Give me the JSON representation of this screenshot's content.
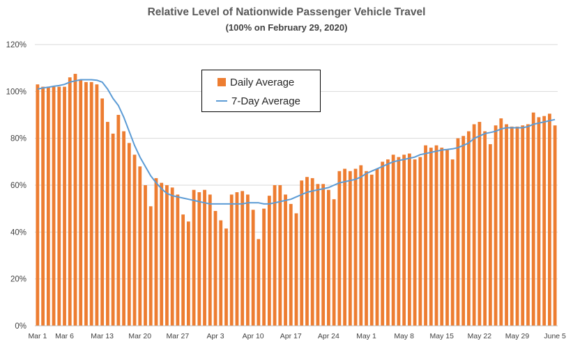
{
  "colors": {
    "bar": "#ED7D31",
    "line": "#5B9BD5",
    "grid": "#D9D9D9",
    "axis": "#BFBFBF"
  },
  "chart_data": {
    "type": "bar",
    "title": "Relative Level of Nationwide Passenger Vehicle Travel",
    "subtitle": "(100% on February 29, 2020)",
    "xlabel": "",
    "ylabel": "",
    "ylim": [
      0,
      120
    ],
    "yticks": [
      "0%",
      "20%",
      "40%",
      "60%",
      "80%",
      "100%",
      "120%"
    ],
    "grid": true,
    "legend_position": "top-center",
    "x_tick_labels": [
      {
        "label": "Mar 1",
        "index": 0
      },
      {
        "label": "Mar 6",
        "index": 5
      },
      {
        "label": "Mar 13",
        "index": 12
      },
      {
        "label": "Mar 20",
        "index": 19
      },
      {
        "label": "Mar 27",
        "index": 26
      },
      {
        "label": "Apr 3",
        "index": 33
      },
      {
        "label": "Apr 10",
        "index": 40
      },
      {
        "label": "Apr 17",
        "index": 47
      },
      {
        "label": "Apr 24",
        "index": 54
      },
      {
        "label": "May 1",
        "index": 61
      },
      {
        "label": "May 8",
        "index": 68
      },
      {
        "label": "May 15",
        "index": 75
      },
      {
        "label": "May 22",
        "index": 82
      },
      {
        "label": "May 29",
        "index": 89
      },
      {
        "label": "June 5",
        "index": 96
      }
    ],
    "series": [
      {
        "name": "Daily Average",
        "type": "bar",
        "values": [
          103,
          102,
          102,
          102,
          102,
          102,
          106,
          107.5,
          105,
          104,
          104,
          103,
          97,
          87,
          82,
          90,
          83,
          78,
          73,
          68,
          60,
          51,
          63,
          61,
          60,
          59,
          56,
          47.5,
          44.5,
          58,
          57,
          58,
          56,
          49,
          45,
          41.5,
          56,
          57,
          57.5,
          56,
          49.5,
          37,
          50,
          55.5,
          60,
          60,
          56,
          52,
          48,
          62,
          63.5,
          63,
          60.5,
          60.5,
          58,
          54,
          66,
          67,
          66,
          67,
          68.5,
          66,
          64.5,
          67,
          70,
          71,
          73,
          72,
          73,
          73.5,
          71,
          72,
          77,
          76,
          77,
          76,
          75,
          71,
          80,
          81,
          83,
          86,
          87,
          83,
          77.5,
          85.5,
          88.5,
          86,
          85,
          85,
          85.5,
          86,
          91,
          89,
          89.5,
          90.5,
          85.5
        ]
      },
      {
        "name": "7-Day Average",
        "type": "line",
        "values": [
          101,
          101.5,
          101.8,
          102.2,
          102.5,
          103,
          104,
          104.5,
          105,
          105,
          105,
          104.8,
          104,
          101,
          97,
          94,
          89,
          83,
          77,
          72,
          68,
          64,
          61,
          58.5,
          56.5,
          55.5,
          55,
          54.5,
          54,
          53.5,
          53,
          52.5,
          52,
          52,
          52,
          52,
          52,
          52,
          52,
          52.5,
          52.5,
          52.5,
          52,
          52,
          52.5,
          53,
          53.5,
          54,
          55,
          56,
          57,
          57.5,
          58,
          58.5,
          59,
          60,
          61,
          61.5,
          62,
          62.5,
          63.5,
          65,
          66,
          67,
          68,
          69,
          70,
          70.5,
          71,
          71.5,
          72,
          73,
          73.5,
          74,
          74.5,
          75,
          75.2,
          75.5,
          76,
          77,
          78,
          80,
          81,
          82,
          82.5,
          83,
          84,
          84.5,
          84.5,
          84.5,
          84.5,
          85,
          86,
          86.5,
          87,
          87.5,
          88
        ]
      }
    ]
  }
}
